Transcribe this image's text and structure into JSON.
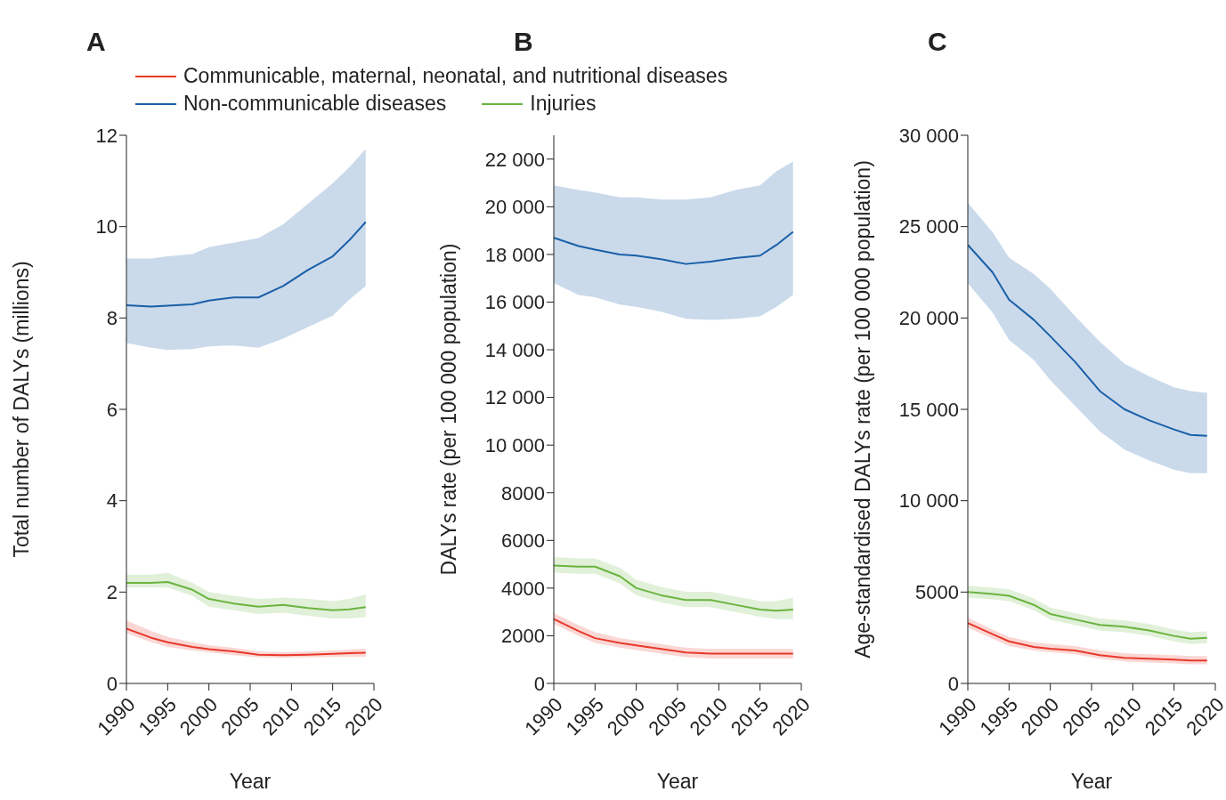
{
  "chart_data": [
    {
      "type": "line",
      "title": "A",
      "xlabel": "Year",
      "ylabel": "Total number of DALYs (millions)",
      "legend": "top",
      "marker": "none",
      "x": [
        1990,
        1993,
        1995,
        1998,
        2000,
        2003,
        2006,
        2009,
        2012,
        2015,
        2017,
        2019
      ],
      "xlim": [
        1990,
        2020
      ],
      "xticks": [
        1990,
        1995,
        2000,
        2005,
        2010,
        2015,
        2020
      ],
      "ylim": [
        0,
        12
      ],
      "yticks": [
        0,
        2,
        4,
        6,
        8,
        10,
        12
      ],
      "series": [
        {
          "name": "Communicable, maternal, neonatal, and nutritional diseases",
          "color": "#e8392a",
          "values": [
            1.2,
            1.0,
            0.9,
            0.8,
            0.75,
            0.7,
            0.63,
            0.62,
            0.63,
            0.65,
            0.66,
            0.67
          ],
          "lower": [
            1.1,
            0.9,
            0.8,
            0.72,
            0.68,
            0.62,
            0.57,
            0.56,
            0.57,
            0.58,
            0.58,
            0.58
          ],
          "upper": [
            1.38,
            1.15,
            1.02,
            0.9,
            0.84,
            0.78,
            0.7,
            0.68,
            0.7,
            0.72,
            0.74,
            0.76
          ]
        },
        {
          "name": "Non-communicable diseases",
          "color": "#1a5fa8",
          "values": [
            8.28,
            8.25,
            8.27,
            8.3,
            8.38,
            8.45,
            8.45,
            8.7,
            9.05,
            9.35,
            9.7,
            10.1
          ],
          "lower": [
            7.45,
            7.35,
            7.3,
            7.32,
            7.38,
            7.4,
            7.35,
            7.55,
            7.8,
            8.05,
            8.4,
            8.7
          ],
          "upper": [
            9.3,
            9.3,
            9.35,
            9.4,
            9.55,
            9.65,
            9.75,
            10.05,
            10.5,
            10.95,
            11.3,
            11.7
          ]
        },
        {
          "name": "Injuries",
          "color": "#6ab43f",
          "values": [
            2.2,
            2.2,
            2.22,
            2.05,
            1.85,
            1.75,
            1.68,
            1.72,
            1.65,
            1.6,
            1.62,
            1.67
          ],
          "lower": [
            2.1,
            2.1,
            2.1,
            1.92,
            1.68,
            1.6,
            1.52,
            1.55,
            1.48,
            1.42,
            1.42,
            1.45
          ],
          "upper": [
            2.38,
            2.38,
            2.42,
            2.2,
            2.0,
            1.92,
            1.85,
            1.88,
            1.85,
            1.8,
            1.85,
            1.95
          ]
        }
      ]
    },
    {
      "type": "line",
      "title": "B",
      "xlabel": "Year",
      "ylabel": "DALYs rate (per 100 000 population)",
      "marker": "none",
      "x": [
        1990,
        1993,
        1995,
        1998,
        2000,
        2003,
        2006,
        2009,
        2012,
        2015,
        2017,
        2019
      ],
      "xlim": [
        1990,
        2020
      ],
      "xticks": [
        1990,
        1995,
        2000,
        2005,
        2010,
        2015,
        2020
      ],
      "ylim": [
        0,
        23000
      ],
      "yticks": [
        0,
        2000,
        4000,
        6000,
        8000,
        {
          "value": 10000,
          "label": "10 000"
        },
        {
          "value": 12000,
          "label": "12 000"
        },
        {
          "value": 14000,
          "label": "14 000"
        },
        {
          "value": 16000,
          "label": "16 000"
        },
        {
          "value": 18000,
          "label": "18 000"
        },
        {
          "value": 20000,
          "label": "20 000"
        },
        {
          "value": 22000,
          "label": "22 000"
        }
      ],
      "series": [
        {
          "color": "#e8392a",
          "values": [
            2700,
            2200,
            1900,
            1700,
            1600,
            1450,
            1300,
            1250,
            1250,
            1250,
            1250,
            1250
          ],
          "lower": [
            2500,
            2000,
            1700,
            1500,
            1400,
            1250,
            1100,
            1050,
            1050,
            1050,
            1050,
            1050
          ],
          "upper": [
            2950,
            2450,
            2150,
            1900,
            1800,
            1650,
            1500,
            1450,
            1450,
            1450,
            1450,
            1450
          ]
        },
        {
          "color": "#1a5fa8",
          "values": [
            18700,
            18350,
            18200,
            18000,
            17950,
            17800,
            17600,
            17700,
            17850,
            17950,
            18400,
            18950
          ],
          "lower": [
            16800,
            16300,
            16200,
            15900,
            15800,
            15600,
            15300,
            15250,
            15300,
            15400,
            15800,
            16300
          ],
          "upper": [
            20900,
            20700,
            20600,
            20400,
            20400,
            20300,
            20300,
            20400,
            20700,
            20900,
            21500,
            21900
          ]
        },
        {
          "color": "#6ab43f",
          "values": [
            4950,
            4900,
            4900,
            4500,
            4000,
            3700,
            3500,
            3500,
            3300,
            3100,
            3050,
            3100
          ],
          "lower": [
            4650,
            4600,
            4600,
            4200,
            3700,
            3400,
            3200,
            3200,
            3000,
            2800,
            2700,
            2700
          ],
          "upper": [
            5300,
            5250,
            5250,
            4850,
            4350,
            4050,
            3850,
            3850,
            3650,
            3450,
            3450,
            3600
          ]
        }
      ]
    },
    {
      "type": "line",
      "title": "C",
      "xlabel": "Year",
      "ylabel": "Age-standardised DALYs rate (per 100 000 population)",
      "marker": "none",
      "x": [
        1990,
        1993,
        1995,
        1998,
        2000,
        2003,
        2006,
        2009,
        2012,
        2015,
        2017,
        2019
      ],
      "xlim": [
        1990,
        2020
      ],
      "xticks": [
        1990,
        1995,
        2000,
        2005,
        2010,
        2015,
        2020
      ],
      "ylim": [
        0,
        30000
      ],
      "yticks": [
        0,
        5000,
        {
          "value": 10000,
          "label": "10 000"
        },
        {
          "value": 15000,
          "label": "15 000"
        },
        {
          "value": 20000,
          "label": "20 000"
        },
        {
          "value": 25000,
          "label": "25 000"
        },
        {
          "value": 30000,
          "label": "30 000"
        }
      ],
      "series": [
        {
          "color": "#e8392a",
          "values": [
            3300,
            2700,
            2300,
            2000,
            1900,
            1800,
            1550,
            1400,
            1350,
            1300,
            1250,
            1250
          ],
          "lower": [
            3050,
            2450,
            2050,
            1800,
            1700,
            1600,
            1350,
            1200,
            1150,
            1100,
            1050,
            1050
          ],
          "upper": [
            3600,
            2950,
            2550,
            2250,
            2150,
            2050,
            1800,
            1650,
            1600,
            1550,
            1500,
            1500
          ]
        },
        {
          "color": "#1a5fa8",
          "values": [
            24000,
            22500,
            21000,
            19900,
            19000,
            17600,
            16000,
            15000,
            14400,
            13900,
            13600,
            13550
          ],
          "lower": [
            21900,
            20300,
            18800,
            17700,
            16600,
            15200,
            13800,
            12800,
            12200,
            11700,
            11500,
            11500
          ],
          "upper": [
            26300,
            24700,
            23300,
            22400,
            21600,
            20100,
            18700,
            17500,
            16800,
            16200,
            16000,
            15900
          ]
        },
        {
          "color": "#6ab43f",
          "values": [
            5000,
            4900,
            4800,
            4300,
            3800,
            3500,
            3200,
            3100,
            2900,
            2600,
            2450,
            2500
          ],
          "lower": [
            4700,
            4600,
            4500,
            4000,
            3500,
            3200,
            2900,
            2800,
            2600,
            2300,
            2150,
            2200
          ],
          "upper": [
            5350,
            5250,
            5150,
            4650,
            4150,
            3850,
            3550,
            3450,
            3250,
            2950,
            2800,
            2850
          ]
        }
      ]
    }
  ]
}
